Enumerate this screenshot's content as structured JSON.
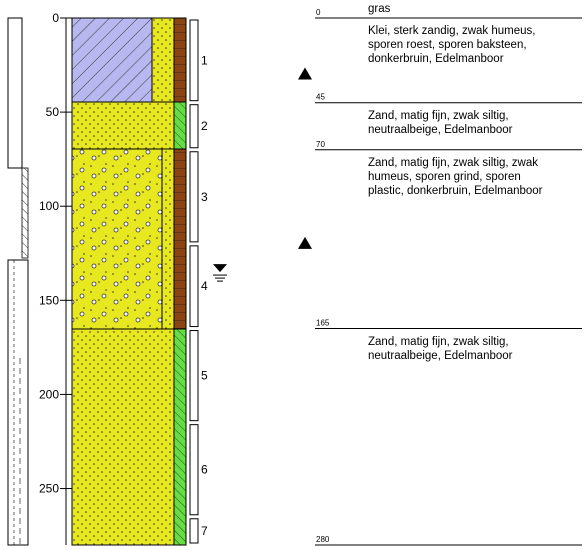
{
  "depth_axis": {
    "ticks": [
      {
        "label": "0",
        "depth": 0
      },
      {
        "label": "50",
        "depth": 50
      },
      {
        "label": "100",
        "depth": 100
      },
      {
        "label": "150",
        "depth": 150
      },
      {
        "label": "200",
        "depth": 200
      },
      {
        "label": "250",
        "depth": 250
      }
    ],
    "max_depth": 280
  },
  "samples": [
    {
      "label": "1",
      "top": 0,
      "bottom": 45
    },
    {
      "label": "2",
      "top": 45,
      "bottom": 70
    },
    {
      "label": "3",
      "top": 70,
      "bottom": 120
    },
    {
      "label": "4",
      "top": 120,
      "bottom": 165
    },
    {
      "label": "5",
      "top": 165,
      "bottom": 215
    },
    {
      "label": "6",
      "top": 215,
      "bottom": 265
    },
    {
      "label": "7",
      "top": 265,
      "bottom": 280
    }
  ],
  "layers": [
    {
      "top_label": "0",
      "top": 0,
      "description": "gras"
    },
    {
      "top_label": "",
      "top": 0,
      "description": "Klei, sterk zandig, zwak humeus,\nsporen roest, sporen baksteen,\ndonkerbruin, Edelmanboor"
    },
    {
      "top_label": "45",
      "top": 45,
      "description": "Zand, matig fijn, zwak siltig,\nneutraalbeige, Edelmanboor"
    },
    {
      "top_label": "70",
      "top": 70,
      "description": "Zand, matig fijn, zwak siltig, zwak\nhumeus, sporen grind, sporen\nplastic, donkerbruin, Edelmanboor"
    },
    {
      "top_label": "165",
      "top": 165,
      "description": "Zand, matig fijn, zwak siltig,\nneutraalbeige, Edelmanboor"
    },
    {
      "top_label": "280",
      "top": 280,
      "description": ""
    }
  ],
  "groundwater_depth": 135,
  "markers": [
    {
      "symbol": "triangle",
      "depth": 30
    },
    {
      "symbol": "triangle",
      "depth": 120
    }
  ],
  "colors": {
    "clay_fill": "#b8b8f0",
    "sand_fill": "#e8e820",
    "humus_strip": "#8b4513",
    "green_strip": "#66dd44",
    "line": "#000000"
  }
}
